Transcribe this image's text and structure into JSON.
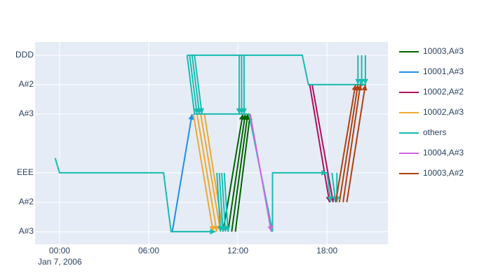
{
  "chart_data": {
    "type": "line",
    "x_date_label": "Jan 7, 2006",
    "xlim": [
      "2006-01-06 22:21",
      "2006-01-07 22:06"
    ],
    "xticks": [
      {
        "value": "2006-01-07 00:00",
        "label": "00:00"
      },
      {
        "value": "2006-01-07 06:00",
        "label": "06:00"
      },
      {
        "value": "2006-01-07 12:00",
        "label": "12:00"
      },
      {
        "value": "2006-01-07 18:00",
        "label": "18:00"
      }
    ],
    "ylim": [
      -0.43,
      6.45
    ],
    "yticks": [
      {
        "value": 6,
        "label": "DDD"
      },
      {
        "value": 5,
        "label": "A#2"
      },
      {
        "value": 4,
        "label": "A#3"
      },
      {
        "value": 2,
        "label": "EEE"
      },
      {
        "value": 1,
        "label": "A#2"
      },
      {
        "value": 0,
        "label": "A#3"
      }
    ],
    "grid": true,
    "series": [
      {
        "name": "10003,A#3",
        "color": "#006400",
        "x": [
          "2006-01-07 11:00",
          "2006-01-07 12:20",
          null,
          "2006-01-07 11:20",
          "2006-01-07 12:30",
          null,
          "2006-01-07 11:35",
          "2006-01-07 12:40",
          null,
          "2006-01-07 11:50",
          "2006-01-07 12:50"
        ],
        "values": [
          0,
          4,
          null,
          0,
          4,
          null,
          0,
          4,
          null,
          0,
          4
        ]
      },
      {
        "name": "10001,A#3",
        "color": "#1f8fe6",
        "x": [
          "2006-01-07 07:35",
          "2006-01-07 08:55"
        ],
        "values": [
          0,
          4
        ]
      },
      {
        "name": "10002,A#2",
        "color": "#b0105e",
        "x": [
          "2006-01-07 16:50",
          "2006-01-07 18:10",
          null,
          "2006-01-07 17:00",
          "2006-01-07 18:25"
        ],
        "values": [
          5,
          1,
          null,
          5,
          1
        ]
      },
      {
        "name": "10002,A#3",
        "color": "#f0a830",
        "x": [
          "2006-01-07 09:00",
          "2006-01-07 10:20",
          null,
          "2006-01-07 09:15",
          "2006-01-07 10:35",
          null,
          "2006-01-07 09:30",
          "2006-01-07 10:50",
          null,
          "2006-01-07 09:45",
          "2006-01-07 11:00"
        ],
        "values": [
          4,
          0,
          null,
          4,
          0,
          null,
          4,
          0,
          null,
          4,
          0
        ]
      },
      {
        "name": "others",
        "color": "#17bcb0",
        "x": [
          "2006-01-06 23:42",
          "2006-01-07 00:00",
          "2006-01-07 07:00",
          "2006-01-07 07:30",
          "2006-01-07 10:30",
          null,
          "2006-01-07 08:35",
          "2006-01-07 09:05",
          "2006-01-07 12:45",
          "2006-01-07 14:20",
          "2006-01-07 14:20",
          "2006-01-07 18:00",
          null,
          "2006-01-07 08:35",
          "2006-01-07 16:20",
          "2006-01-07 16:45",
          "2006-01-07 20:35",
          null,
          "2006-01-07 08:45",
          "2006-01-07 09:15",
          null,
          "2006-01-07 08:55",
          "2006-01-07 09:25",
          null,
          "2006-01-07 09:05",
          "2006-01-07 09:35",
          null,
          "2006-01-07 10:35",
          "2006-01-07 10:50",
          null,
          "2006-01-07 10:45",
          "2006-01-07 11:00",
          null,
          "2006-01-07 10:55",
          "2006-01-07 11:10",
          null,
          "2006-01-07 11:05",
          "2006-01-07 11:20",
          null,
          "2006-01-07 12:05",
          "2006-01-07 12:05",
          null,
          "2006-01-07 12:15",
          "2006-01-07 12:15",
          null,
          "2006-01-07 12:25",
          "2006-01-07 12:25",
          null,
          "2006-01-07 20:05",
          "2006-01-07 20:05",
          null,
          "2006-01-07 20:20",
          "2006-01-07 20:20",
          null,
          "2006-01-07 20:35",
          "2006-01-07 20:35",
          null,
          "2006-01-07 18:00",
          "2006-01-07 18:15",
          null,
          "2006-01-07 18:20",
          "2006-01-07 18:35",
          null,
          "2006-01-07 18:40",
          "2006-01-07 18:40"
        ],
        "values": [
          2.5,
          2,
          2,
          0,
          0,
          null,
          6,
          4,
          4,
          0,
          2,
          2,
          null,
          6,
          6,
          5,
          5,
          null,
          6,
          4,
          null,
          6,
          4,
          null,
          6,
          4,
          null,
          2,
          0,
          null,
          2,
          0,
          null,
          2,
          0,
          null,
          2,
          0,
          null,
          6,
          4,
          null,
          6,
          4,
          null,
          6,
          4,
          null,
          6,
          5,
          null,
          6,
          5,
          null,
          6,
          5,
          null,
          2,
          1,
          null,
          2,
          1,
          null,
          2,
          1
        ]
      },
      {
        "name": "10004,A#3",
        "color": "#d066e0",
        "x": [
          "2006-01-07 12:50",
          "2006-01-07 14:15"
        ],
        "values": [
          4,
          0
        ]
      },
      {
        "name": "10003,A#2",
        "color": "#b04010",
        "x": [
          "2006-01-07 18:35",
          "2006-01-07 19:55",
          null,
          "2006-01-07 18:50",
          "2006-01-07 20:05",
          null,
          "2006-01-07 19:05",
          "2006-01-07 20:15",
          null,
          "2006-01-07 19:20",
          "2006-01-07 20:35"
        ],
        "values": [
          1,
          5,
          null,
          1,
          5,
          null,
          1,
          5,
          null,
          1,
          5
        ]
      }
    ]
  }
}
